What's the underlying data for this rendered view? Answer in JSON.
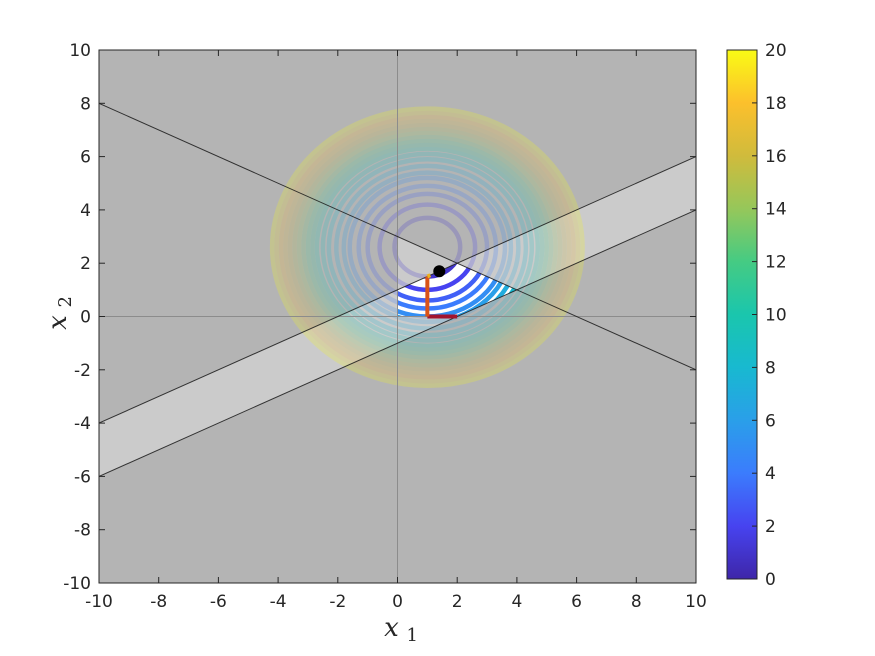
{
  "chart_data": {
    "type": "contour",
    "xlabel": {
      "base": "x",
      "sub": "1"
    },
    "ylabel": {
      "base": "x",
      "sub": "2"
    },
    "xlim": [
      -10,
      10
    ],
    "ylim": [
      -10,
      10
    ],
    "xticks": [
      -10,
      -8,
      -6,
      -4,
      -2,
      0,
      2,
      4,
      6,
      8,
      10
    ],
    "yticks": [
      -10,
      -8,
      -6,
      -4,
      -2,
      0,
      2,
      4,
      6,
      8,
      10
    ],
    "contour_center": [
      1.0,
      2.6
    ],
    "contour_levels": [
      1,
      2,
      3,
      4,
      5,
      6,
      7,
      8,
      9,
      10,
      11,
      12,
      13,
      14,
      15,
      16,
      17,
      18,
      19,
      20
    ],
    "contour_radii": [
      1.1,
      1.6,
      2.0,
      2.3,
      2.6,
      2.8,
      3.05,
      3.3,
      3.5,
      3.7,
      3.85,
      4.0,
      4.15,
      4.3,
      4.45,
      4.6,
      4.75,
      4.9,
      5.05,
      5.2
    ],
    "constraint_lines": [
      {
        "x": [
          -10,
          10
        ],
        "y": [
          8,
          -2
        ]
      },
      {
        "x": [
          -10,
          10
        ],
        "y": [
          -4,
          6
        ]
      },
      {
        "x": [
          -10,
          10
        ],
        "y": [
          -6,
          4
        ]
      }
    ],
    "feasible_region": [
      [
        0,
        0
      ],
      [
        0,
        1
      ],
      [
        2,
        2
      ],
      [
        4,
        1
      ],
      [
        2,
        0
      ]
    ],
    "optimum_point": [
      1.4,
      1.7
    ],
    "path_segments": [
      {
        "x": [
          2,
          1
        ],
        "y": [
          0,
          0
        ],
        "color": "#a2142f"
      },
      {
        "x": [
          1,
          1
        ],
        "y": [
          0,
          1.5
        ],
        "color": "#d95319"
      },
      {
        "x": [
          1,
          1.1
        ],
        "y": [
          1.5,
          1.55
        ],
        "color": "#edb120"
      }
    ],
    "colorbar": {
      "min": 0,
      "max": 20,
      "ticks": [
        0,
        2,
        4,
        6,
        8,
        10,
        12,
        14,
        16,
        18,
        20
      ]
    },
    "colors": {
      "background_infeasible": "#b4b4b4",
      "band_region": "#cbcbcb",
      "feasible": "#ffffff",
      "optimum": "#000000"
    }
  }
}
